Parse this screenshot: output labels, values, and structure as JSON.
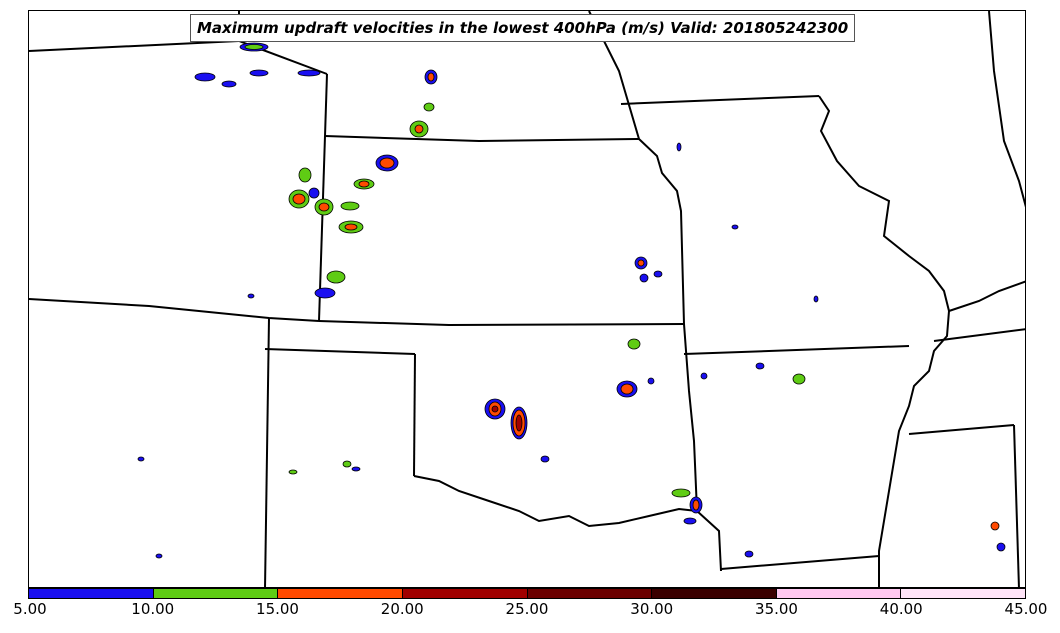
{
  "title": "Maximum updraft velocities in the lowest 400hPa (m/s) Valid: 201805242300",
  "colorbar": {
    "ticks": [
      "5.00",
      "10.00",
      "15.00",
      "20.00",
      "25.00",
      "30.00",
      "35.00",
      "40.00",
      "45.00"
    ],
    "colors": [
      "#1a0ff0",
      "#5fcc14",
      "#ff4a00",
      "#a00000",
      "#6b0000",
      "#3a0000",
      "#ffc8f0",
      "#ffe4f8"
    ]
  },
  "colors": {
    "border": "#000000",
    "fill_levels": [
      "#1a0ff0",
      "#5fcc14",
      "#ff4a00",
      "#a00000"
    ]
  }
}
